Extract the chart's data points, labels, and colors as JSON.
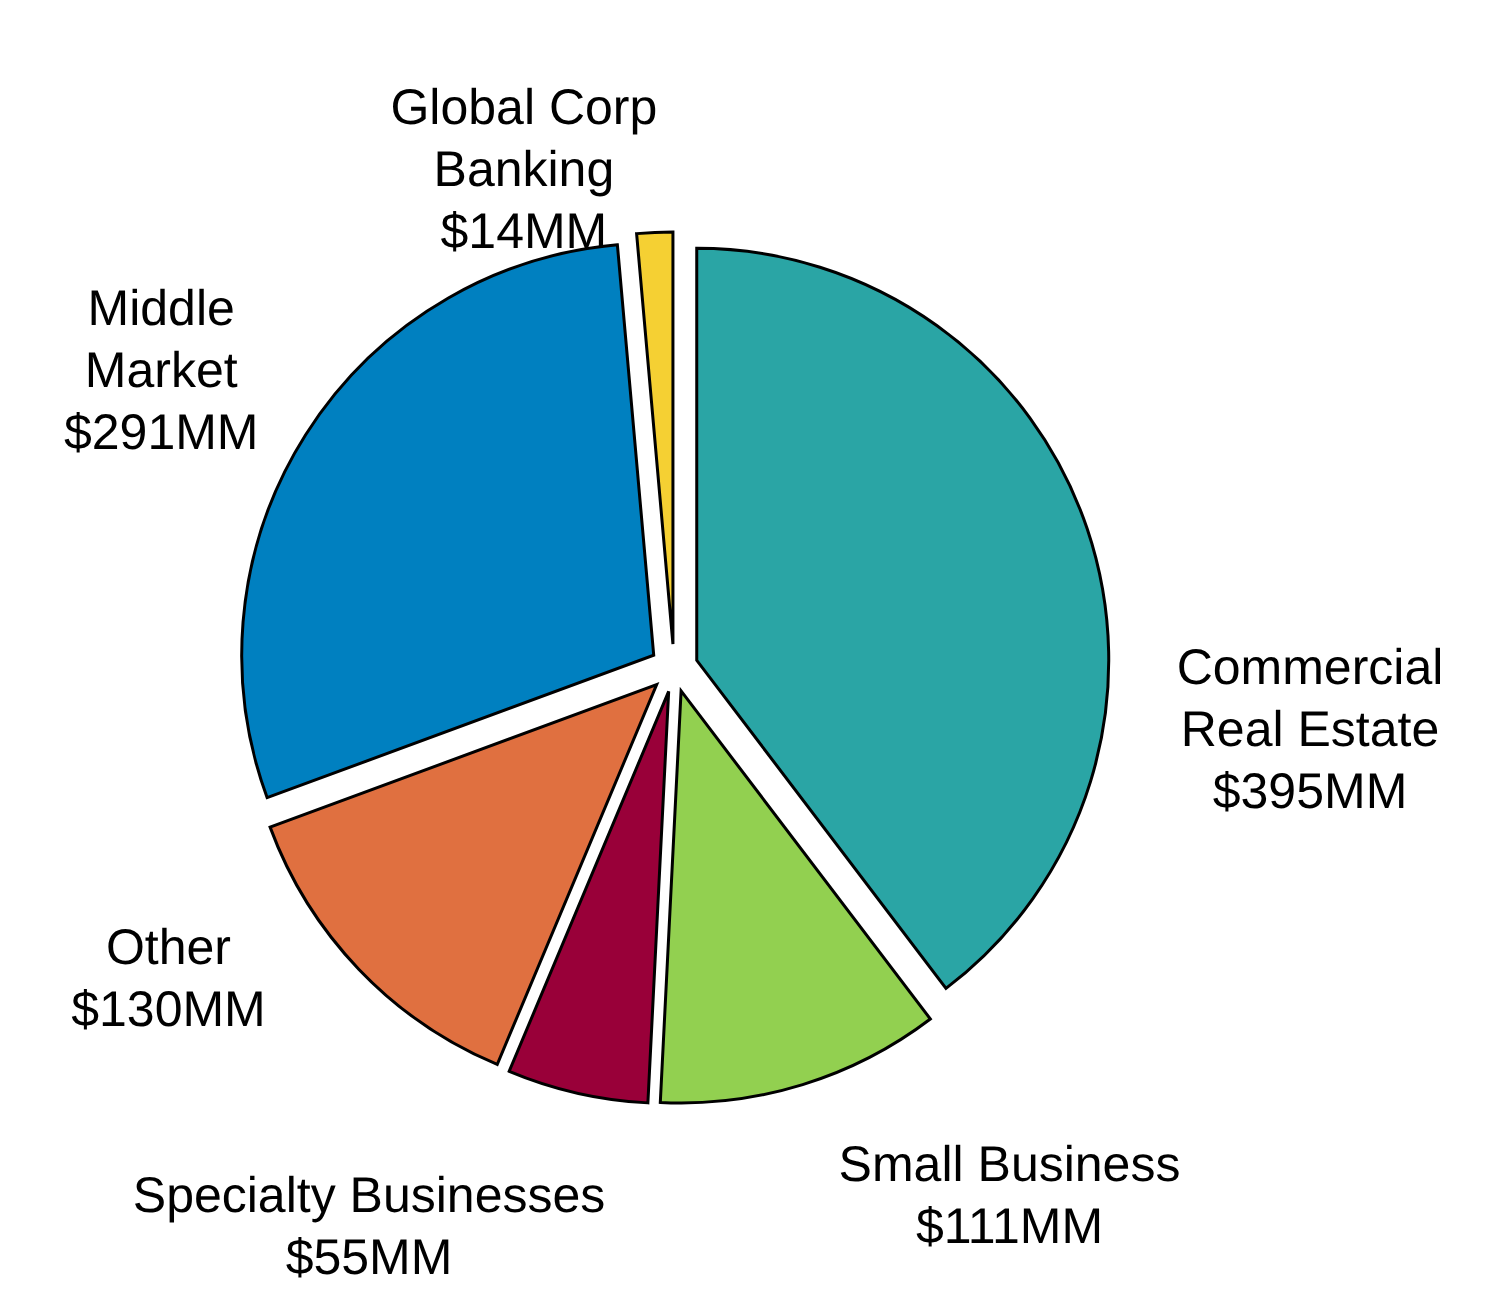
{
  "chart_data": {
    "type": "pie",
    "categories": [
      "Commercial Real Estate",
      "Small Business",
      "Specialty Businesses",
      "Other",
      "Middle Market",
      "Global Corp Banking"
    ],
    "values": [
      395,
      111,
      55,
      130,
      291,
      14
    ],
    "colors": [
      "#2aa5a5",
      "#92d050",
      "#990039",
      "#e07040",
      "#0080c0",
      "#f5d033"
    ],
    "value_labels": [
      "$395MM",
      "$111MM",
      "$55MM",
      "$130MM",
      "$291MM",
      "$14MM"
    ]
  }
}
